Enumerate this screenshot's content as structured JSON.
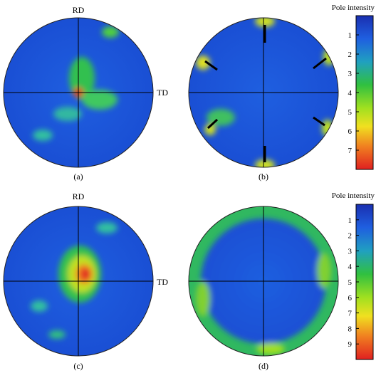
{
  "figure": {
    "panels": [
      {
        "label": "(a)",
        "rd": "RD",
        "td": "TD"
      },
      {
        "label": "(b)"
      },
      {
        "label": "(c)",
        "rd": "RD",
        "td": "TD"
      },
      {
        "label": "(d)"
      }
    ],
    "colorbars": [
      {
        "title": "Pole intensity",
        "ticks": [
          1,
          2,
          3,
          4,
          5,
          6,
          7
        ]
      },
      {
        "title": "Pole intensity",
        "ticks": [
          1,
          2,
          3,
          4,
          5,
          6,
          7,
          8,
          9
        ]
      }
    ]
  }
}
